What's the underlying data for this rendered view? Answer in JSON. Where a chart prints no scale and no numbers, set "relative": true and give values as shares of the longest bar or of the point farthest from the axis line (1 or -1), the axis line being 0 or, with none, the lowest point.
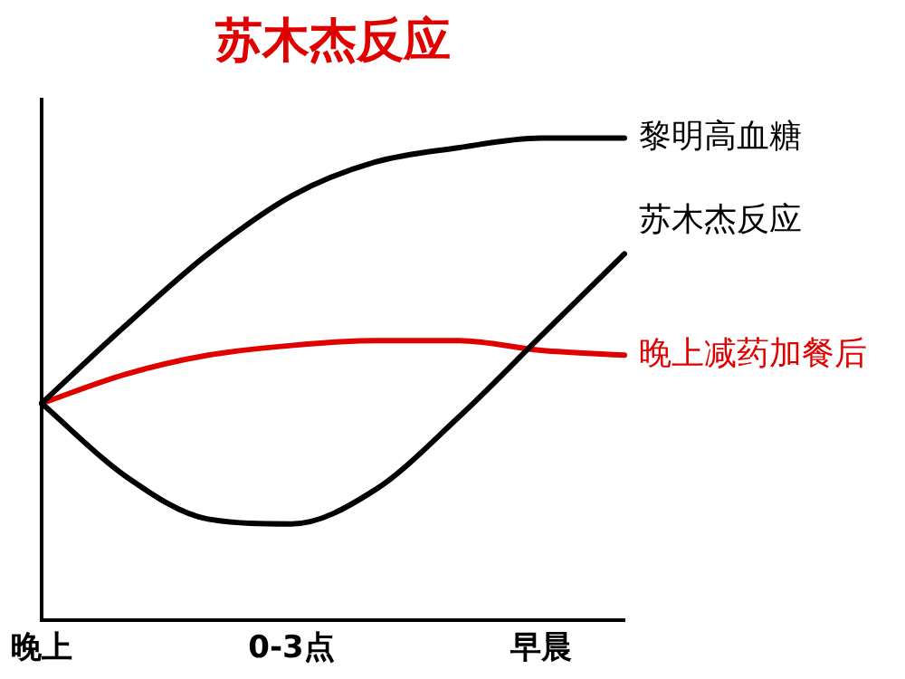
{
  "chart_data": {
    "type": "line",
    "title": "苏木杰反应",
    "relative": true,
    "categories": [
      "晚上",
      null,
      null,
      "0-3点",
      null,
      null,
      "早晨",
      null
    ],
    "series": [
      {
        "name": "黎明高血糖",
        "color": "#000000",
        "values": [
          0.45,
          0.61,
          0.76,
          0.88,
          0.95,
          0.98,
          1,
          1
        ]
      },
      {
        "name": "苏木杰反应",
        "color": "#000000",
        "values": [
          0.45,
          0.3,
          0.21,
          0.2,
          0.27,
          0.42,
          0.59,
          0.76
        ]
      },
      {
        "name": "晚上减药加餐后",
        "color": "#e00000",
        "values": [
          0.45,
          0.51,
          0.55,
          0.57,
          0.58,
          0.58,
          0.56,
          0.55
        ]
      }
    ],
    "legend": false,
    "grid": false,
    "marker": "none",
    "line_style": "solid"
  }
}
